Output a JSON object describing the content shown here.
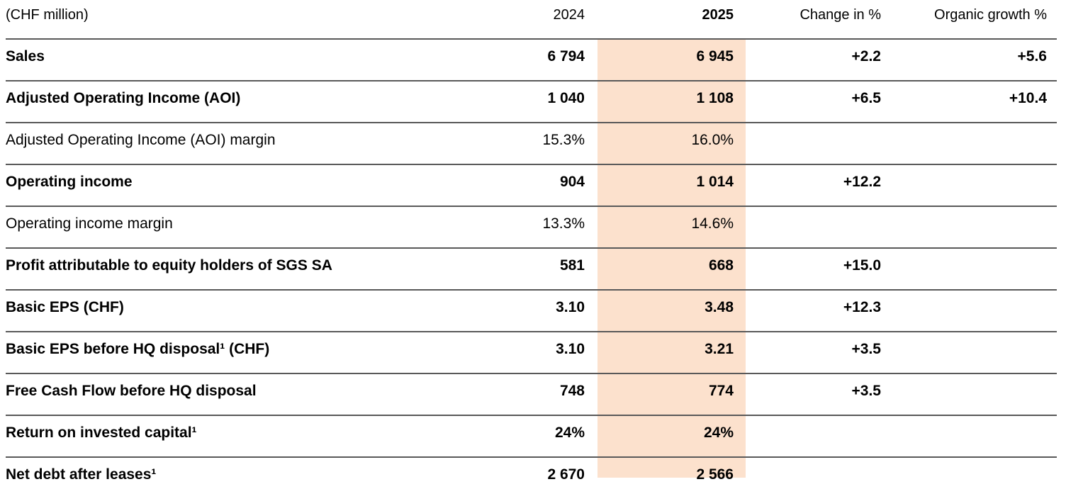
{
  "page": {
    "background": "#ffffff",
    "text_color": "#000000",
    "rule_color": "#595959",
    "bottom_rule_color": "#111111"
  },
  "table": {
    "unit_label": "(CHF million)",
    "columns": {
      "y2024": "2024",
      "y2025": "2025",
      "change": "Change in %",
      "organic": "Organic growth %"
    },
    "highlighted_column": "2025",
    "highlight_color": "#FCE1CD",
    "footnote_marker": "¹",
    "rows": [
      {
        "label": "Sales",
        "bold": true,
        "y2024": "6 794",
        "y2025": "6 945",
        "change": "+2.2",
        "organic": "+5.6"
      },
      {
        "label": "Adjusted Operating Income (AOI)",
        "bold": true,
        "y2024": "1 040",
        "y2025": "1 108",
        "change": "+6.5",
        "organic": "+10.4"
      },
      {
        "label": "Adjusted Operating Income (AOI) margin",
        "bold": false,
        "y2024": "15.3%",
        "y2025": "16.0%",
        "change": "",
        "organic": ""
      },
      {
        "label": "Operating income",
        "bold": true,
        "y2024": "904",
        "y2025": "1 014",
        "change": "+12.2",
        "organic": ""
      },
      {
        "label": "Operating income margin",
        "bold": false,
        "y2024": "13.3%",
        "y2025": "14.6%",
        "change": "",
        "organic": ""
      },
      {
        "label": "Profit attributable to equity holders of SGS SA",
        "bold": true,
        "y2024": "581",
        "y2025": "668",
        "change": "+15.0",
        "organic": ""
      },
      {
        "label": "Basic EPS (CHF)",
        "bold": true,
        "y2024": "3.10",
        "y2025": "3.48",
        "change": "+12.3",
        "organic": ""
      },
      {
        "label": "Basic EPS before HQ disposal¹ (CHF)",
        "bold": true,
        "y2024": "3.10",
        "y2025": "3.21",
        "change": "+3.5",
        "organic": ""
      },
      {
        "label": "Free Cash Flow before HQ disposal",
        "bold": true,
        "y2024": "748",
        "y2025": "774",
        "change": "+3.5",
        "organic": ""
      },
      {
        "label": "Return on invested capital¹",
        "bold": true,
        "y2024": "24%",
        "y2025": "24%",
        "change": "",
        "organic": ""
      },
      {
        "label": "Net debt after leases¹",
        "bold": true,
        "y2024": "2 670",
        "y2025": "2 566",
        "change": "",
        "organic": ""
      }
    ]
  }
}
